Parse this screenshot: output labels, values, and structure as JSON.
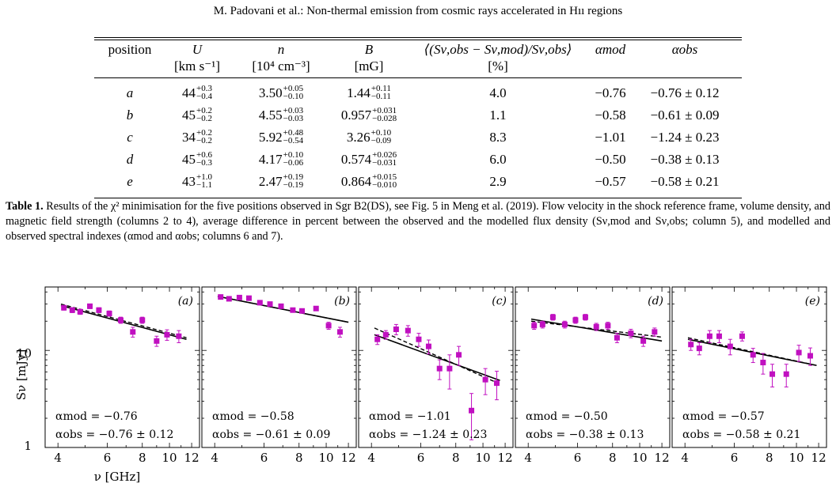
{
  "header": "M. Padovani et al.: Non-thermal emission from cosmic rays accelerated in Hıı regions",
  "table": {
    "columns": [
      {
        "name": "position",
        "unit": ""
      },
      {
        "name": "U",
        "unit": "[km s⁻¹]"
      },
      {
        "name": "n",
        "unit": "[10⁴ cm⁻³]"
      },
      {
        "name": "B",
        "unit": "[mG]"
      },
      {
        "name": "⟨(Sν,obs − Sν,mod)/Sν,obs⟩",
        "unit": "[%]"
      },
      {
        "name": "αmod",
        "unit": ""
      },
      {
        "name": "αobs",
        "unit": ""
      }
    ],
    "rows": [
      {
        "position": "a",
        "U": [
          "44",
          "+0.3",
          "−0.4"
        ],
        "n": [
          "3.50",
          "+0.05",
          "−0.10"
        ],
        "B": [
          "1.44",
          "+0.11",
          "−0.11"
        ],
        "diff": "4.0",
        "alpha_mod": "−0.76",
        "alpha_obs": "−0.76 ± 0.12"
      },
      {
        "position": "b",
        "U": [
          "45",
          "+0.2",
          "−0.2"
        ],
        "n": [
          "4.55",
          "+0.03",
          "−0.03"
        ],
        "B": [
          "0.957",
          "+0.031",
          "−0.028"
        ],
        "diff": "1.1",
        "alpha_mod": "−0.58",
        "alpha_obs": "−0.61 ± 0.09"
      },
      {
        "position": "c",
        "U": [
          "34",
          "+0.2",
          "−0.2"
        ],
        "n": [
          "5.92",
          "+0.48",
          "−0.54"
        ],
        "B": [
          "3.26",
          "+0.10",
          "−0.09"
        ],
        "diff": "8.3",
        "alpha_mod": "−1.01",
        "alpha_obs": "−1.24 ± 0.23"
      },
      {
        "position": "d",
        "U": [
          "45",
          "+0.6",
          "−0.3"
        ],
        "n": [
          "4.17",
          "+0.10",
          "−0.06"
        ],
        "B": [
          "0.574",
          "+0.026",
          "−0.031"
        ],
        "diff": "6.0",
        "alpha_mod": "−0.50",
        "alpha_obs": "−0.38 ± 0.13"
      },
      {
        "position": "e",
        "U": [
          "43",
          "+1.0",
          "−1.1"
        ],
        "n": [
          "2.47",
          "+0.19",
          "−0.19"
        ],
        "B": [
          "0.864",
          "+0.015",
          "−0.010"
        ],
        "diff": "2.9",
        "alpha_mod": "−0.57",
        "alpha_obs": "−0.58 ± 0.21"
      }
    ]
  },
  "caption": {
    "label": "Table 1.",
    "text": " Results of the χ² minimisation for the five positions observed in Sgr B2(DS), see Fig. 5 in Meng et al. (2019). Flow velocity in the shock reference frame, volume density, and magnetic field strength (columns 2 to 4), average difference in percent between the observed and the modelled flux density (Sν,mod and Sν,obs; column 5), and modelled and observed spectral indexes (αmod and αobs; columns 6 and 7)."
  },
  "figure_labels": {
    "ylabel": "Sν [mJy]",
    "xlabel": "ν [GHz]",
    "yticks": [
      "1",
      "10"
    ],
    "xticks": [
      "4",
      "6",
      "8",
      "10",
      "12"
    ]
  },
  "chart_data": [
    {
      "type": "scatter",
      "panel": "(a)",
      "x_scale": "log",
      "y_scale": "log",
      "xlim": [
        3.6,
        12.8
      ],
      "ylim": [
        1,
        45
      ],
      "x": [
        4.2,
        4.5,
        4.8,
        5.2,
        5.6,
        6.1,
        6.7,
        7.4,
        8.0,
        9.0,
        9.8,
        10.8
      ],
      "y": [
        27.5,
        26.0,
        25.0,
        28.5,
        26.0,
        24.0,
        20.5,
        15.5,
        20.5,
        12.5,
        14.5,
        14.0
      ],
      "yerr": [
        1.5,
        1.5,
        1.5,
        1.5,
        1.5,
        1.5,
        1.5,
        1.8,
        1.5,
        1.5,
        1.8,
        2.0
      ],
      "model_line": {
        "x": [
          4.1,
          11.5
        ],
        "y": [
          29.0,
          13.0
        ]
      },
      "obs_line": {
        "x": [
          4.1,
          11.5
        ],
        "y": [
          30.0,
          13.5
        ]
      },
      "alpha_mod": "αmod = −0.76",
      "alpha_obs": "αobs = −0.76 ± 0.12"
    },
    {
      "type": "scatter",
      "panel": "(b)",
      "x_scale": "log",
      "y_scale": "log",
      "xlim": [
        3.6,
        12.8
      ],
      "ylim": [
        1,
        45
      ],
      "x": [
        4.2,
        4.5,
        4.9,
        5.3,
        5.8,
        6.3,
        6.9,
        7.6,
        8.2,
        9.2,
        10.2,
        11.2
      ],
      "y": [
        35.5,
        34.0,
        35.0,
        34.5,
        31.0,
        30.0,
        28.5,
        26.0,
        25.5,
        27.0,
        18.0,
        15.5
      ],
      "yerr": [
        1.2,
        1.2,
        1.2,
        1.2,
        1.2,
        1.2,
        1.2,
        1.2,
        1.2,
        1.2,
        1.5,
        1.8
      ],
      "model_line": {
        "x": [
          4.1,
          12.0
        ],
        "y": [
          36.0,
          19.5
        ]
      },
      "obs_line": {
        "x": [
          4.1,
          12.0
        ],
        "y": [
          36.0,
          19.5
        ]
      },
      "alpha_mod": "αmod = −0.58",
      "alpha_obs": "αobs = −0.61 ± 0.09"
    },
    {
      "type": "scatter",
      "panel": "(c)",
      "x_scale": "log",
      "y_scale": "log",
      "xlim": [
        3.6,
        12.8
      ],
      "ylim": [
        1,
        45
      ],
      "x": [
        4.2,
        4.5,
        4.9,
        5.4,
        5.9,
        6.4,
        7.0,
        7.6,
        8.2,
        9.1,
        10.2,
        11.2
      ],
      "y": [
        13.0,
        14.5,
        16.5,
        16.0,
        13.0,
        11.0,
        6.5,
        6.5,
        9.0,
        2.4,
        5.0,
        4.6
      ],
      "yerr": [
        1.5,
        1.5,
        2.0,
        2.0,
        2.0,
        1.8,
        1.5,
        2.5,
        2.0,
        1.2,
        1.5,
        1.5
      ],
      "model_line": {
        "x": [
          4.1,
          11.5
        ],
        "y": [
          14.5,
          4.9
        ]
      },
      "obs_line": {
        "x": [
          4.1,
          11.5
        ],
        "y": [
          17.0,
          4.5
        ]
      },
      "alpha_mod": "αmod = −1.01",
      "alpha_obs": "αobs = −1.24 ± 0.23"
    },
    {
      "type": "scatter",
      "panel": "(d)",
      "x_scale": "log",
      "y_scale": "log",
      "xlim": [
        3.6,
        12.8
      ],
      "ylim": [
        1,
        45
      ],
      "x": [
        4.2,
        4.5,
        4.9,
        5.4,
        5.9,
        6.4,
        7.0,
        7.7,
        8.3,
        9.3,
        10.3,
        11.3
      ],
      "y": [
        18.0,
        18.5,
        22.0,
        18.5,
        20.5,
        22.0,
        17.5,
        18.0,
        13.5,
        15.0,
        12.5,
        15.5
      ],
      "yerr": [
        1.5,
        1.5,
        1.5,
        1.5,
        1.5,
        1.5,
        1.5,
        1.5,
        1.5,
        1.5,
        1.5,
        1.5
      ],
      "model_line": {
        "x": [
          4.1,
          12.0
        ],
        "y": [
          21.0,
          12.5
        ]
      },
      "obs_line": {
        "x": [
          4.1,
          12.0
        ],
        "y": [
          20.0,
          13.7
        ]
      },
      "alpha_mod": "αmod = −0.50",
      "alpha_obs": "αobs = −0.38 ± 0.13"
    },
    {
      "type": "scatter",
      "panel": "(e)",
      "x_scale": "log",
      "y_scale": "log",
      "xlim": [
        3.6,
        12.8
      ],
      "ylim": [
        1,
        45
      ],
      "x": [
        4.2,
        4.5,
        4.9,
        5.3,
        5.8,
        6.4,
        7.0,
        7.6,
        8.2,
        9.2,
        10.2,
        11.2
      ],
      "y": [
        11.5,
        10.5,
        14.0,
        14.0,
        11.0,
        14.0,
        9.0,
        7.5,
        5.7,
        5.7,
        9.5,
        8.8
      ],
      "yerr": [
        1.5,
        1.5,
        2.0,
        2.0,
        2.0,
        1.5,
        1.5,
        1.8,
        1.5,
        1.5,
        1.8,
        1.8
      ],
      "model_line": {
        "x": [
          4.1,
          11.8
        ],
        "y": [
          13.0,
          7.0
        ]
      },
      "obs_line": {
        "x": [
          4.1,
          11.8
        ],
        "y": [
          13.5,
          7.0
        ]
      },
      "alpha_mod": "αmod = −0.57",
      "alpha_obs": "αobs = −0.58 ± 0.21"
    }
  ],
  "colors": {
    "points": "#c010c0",
    "lines": "#000000"
  }
}
